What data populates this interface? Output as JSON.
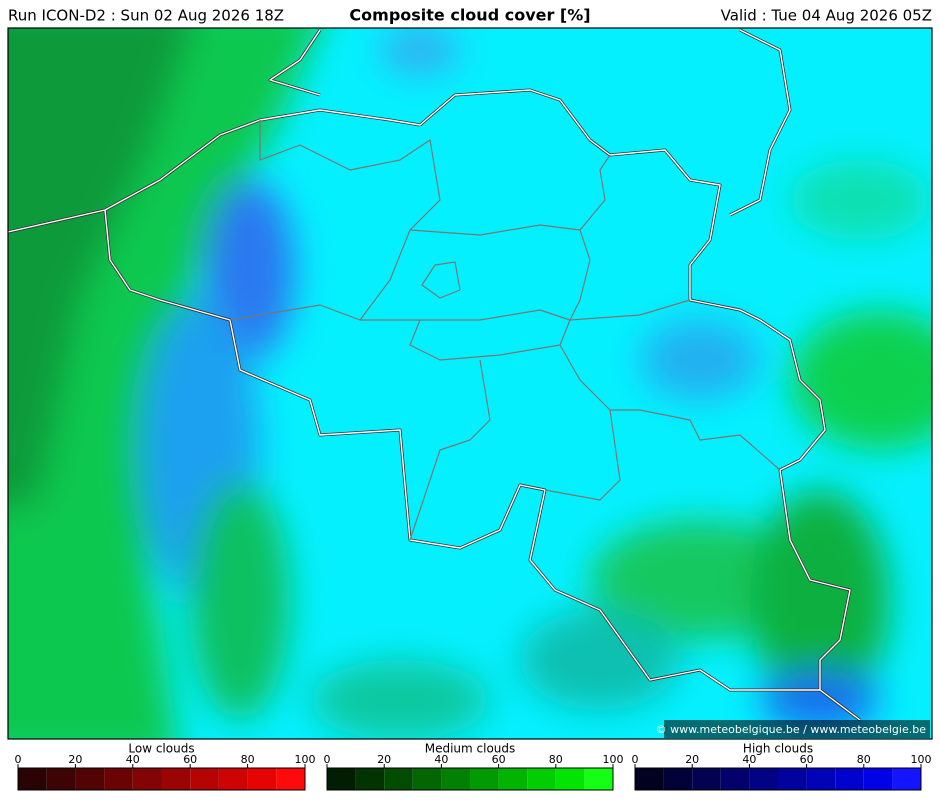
{
  "header": {
    "run": "Run ICON-D2 : Sun 02 Aug 2026 18Z",
    "title": "Composite cloud cover [%]",
    "valid": "Valid : Tue 04 Aug 2026 05Z"
  },
  "map": {
    "credit": "© www.meteobelgique.be / www.meteobelgie.be"
  },
  "legends": [
    {
      "title": "Low clouds",
      "ticks": [
        0,
        20,
        40,
        60,
        80,
        100
      ],
      "colors": [
        "#2a0404",
        "#3c0404",
        "#520404",
        "#6a0404",
        "#820404",
        "#9a0404",
        "#b40404",
        "#cc0404",
        "#e40404",
        "#ff0a0a"
      ]
    },
    {
      "title": "Medium clouds",
      "ticks": [
        0,
        20,
        40,
        60,
        80,
        100
      ],
      "colors": [
        "#021e02",
        "#023402",
        "#024c02",
        "#026602",
        "#028002",
        "#029a02",
        "#02b402",
        "#02cc02",
        "#02e402",
        "#14ff14"
      ]
    },
    {
      "title": "High clouds",
      "ticks": [
        0,
        20,
        40,
        60,
        80,
        100
      ],
      "colors": [
        "#020220",
        "#020238",
        "#020250",
        "#02026a",
        "#020284",
        "#02029c",
        "#0202b6",
        "#0202ce",
        "#0202e6",
        "#1414ff"
      ]
    }
  ]
}
